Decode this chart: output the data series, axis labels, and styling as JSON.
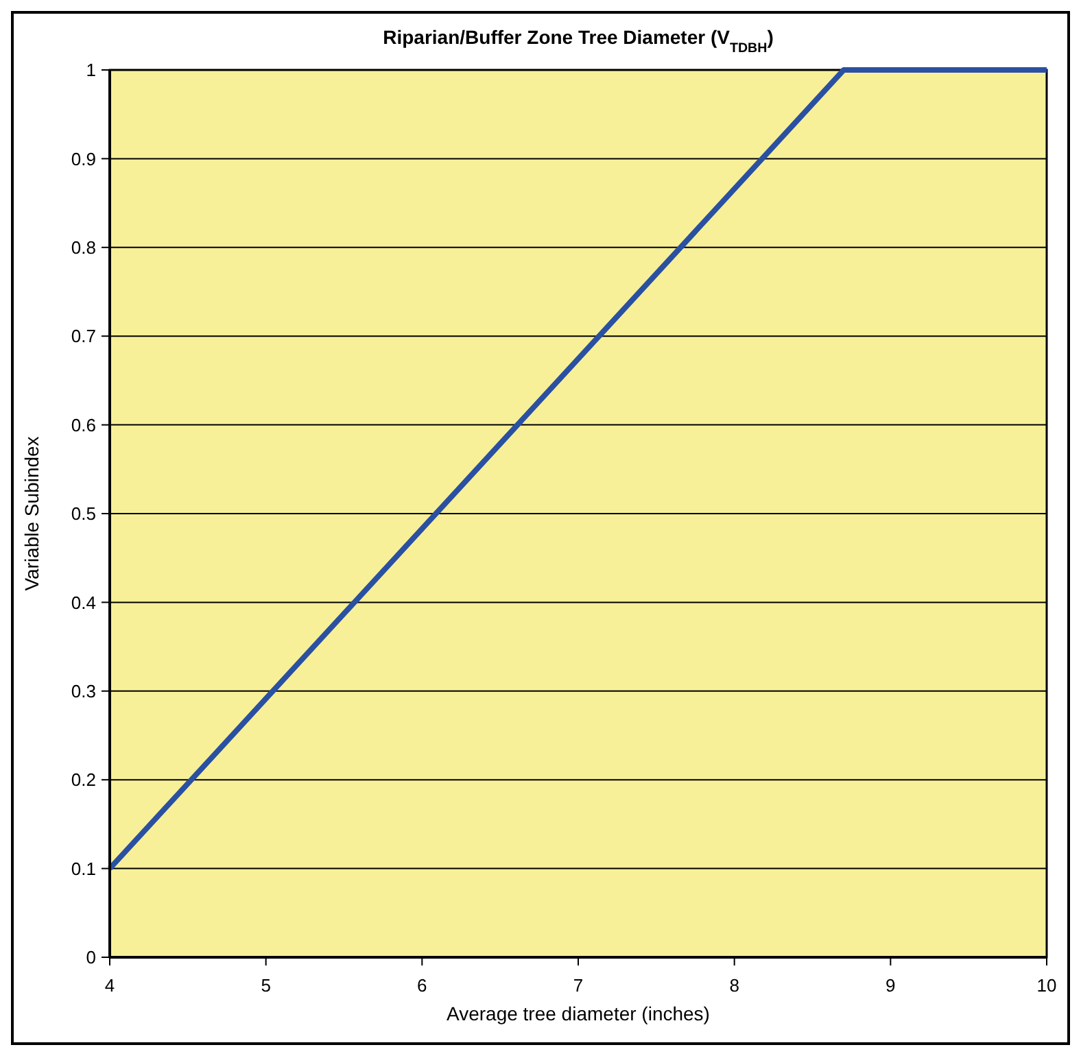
{
  "chart_data": {
    "type": "line",
    "title": "Riparian/Buffer Zone Tree Diameter (V$_{TDBH}$)",
    "xlabel": "Average tree diameter (inches)",
    "ylabel": "Variable Subindex",
    "x": [
      4,
      8.7,
      10
    ],
    "series": [
      {
        "color": "#2a50a2",
        "values": [
          0.1,
          1,
          1
        ]
      }
    ],
    "xlim": [
      4,
      10
    ],
    "xticks": [
      4,
      5,
      6,
      7,
      8,
      9,
      10
    ],
    "ylim": [
      0,
      1
    ],
    "yticks": [
      0,
      0.1,
      0.2,
      0.3,
      0.4,
      0.5,
      0.6,
      0.7,
      0.8,
      0.9,
      1
    ],
    "grid": "y"
  }
}
